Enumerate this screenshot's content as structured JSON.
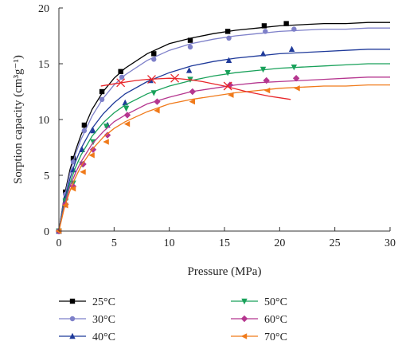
{
  "chart_data": {
    "type": "scatter",
    "xlabel": "Pressure (MPa)",
    "ylabel": "Sorption capacity (cm³g⁻¹)",
    "xlim": [
      0,
      30
    ],
    "ylim": [
      0,
      20
    ],
    "xticks": [
      0,
      5,
      10,
      15,
      20,
      25,
      30
    ],
    "yticks": [
      0,
      5,
      10,
      15,
      20
    ],
    "grid": false,
    "legend_position": "bottom",
    "series": [
      {
        "name": "25°C",
        "color": "#000000",
        "marker": "square",
        "x": [
          0,
          0.6,
          1.3,
          2.3,
          3.9,
          5.6,
          8.6,
          11.9,
          15.3,
          18.6,
          20.6
        ],
        "y": [
          0,
          3.5,
          6.5,
          9.5,
          12.5,
          14.3,
          15.9,
          17.1,
          17.9,
          18.4,
          18.6
        ],
        "fit_x": [
          0,
          0.5,
          1,
          1.5,
          2,
          3,
          4,
          5,
          6,
          8,
          10,
          12,
          14,
          16,
          18,
          20,
          22,
          24,
          26,
          28,
          30
        ],
        "fit_y": [
          0,
          3.2,
          5.5,
          7.2,
          8.6,
          10.9,
          12.5,
          13.7,
          14.6,
          15.9,
          16.8,
          17.3,
          17.7,
          18.0,
          18.2,
          18.4,
          18.5,
          18.6,
          18.6,
          18.7,
          18.7
        ]
      },
      {
        "name": "30°C",
        "color": "#7e80c9",
        "marker": "circle",
        "x": [
          0,
          0.6,
          1.3,
          2.3,
          3.9,
          5.7,
          8.6,
          11.9,
          15.4,
          18.7,
          21.3
        ],
        "y": [
          0,
          3.3,
          6.2,
          9.0,
          11.8,
          13.8,
          15.4,
          16.5,
          17.3,
          17.9,
          18.1
        ],
        "fit_x": [
          0,
          0.5,
          1,
          1.5,
          2,
          3,
          4,
          5,
          6,
          8,
          10,
          12,
          14,
          16,
          18,
          20,
          22,
          24,
          26,
          28,
          30
        ],
        "fit_y": [
          0,
          3.0,
          5.2,
          6.9,
          8.2,
          10.3,
          11.9,
          13.1,
          14.0,
          15.3,
          16.2,
          16.8,
          17.2,
          17.5,
          17.7,
          17.9,
          18.0,
          18.1,
          18.1,
          18.2,
          18.2
        ]
      },
      {
        "name": "40°C",
        "color": "#1f3a9a",
        "marker": "triangle-up",
        "x": [
          0,
          0.6,
          1.3,
          2.1,
          3.1,
          4.4,
          6.0,
          8.3,
          11.8,
          15.4,
          18.5,
          21.1
        ],
        "y": [
          0,
          3.0,
          5.5,
          7.3,
          9.0,
          9.5,
          11.5,
          13.5,
          14.4,
          15.3,
          15.9,
          16.3
        ],
        "fit_x": [
          0,
          0.5,
          1,
          1.5,
          2,
          3,
          4,
          5,
          6,
          8,
          10,
          12,
          14,
          16,
          18,
          20,
          22,
          24,
          26,
          28,
          30
        ],
        "fit_y": [
          0,
          2.7,
          4.7,
          6.2,
          7.4,
          9.2,
          10.5,
          11.5,
          12.3,
          13.4,
          14.2,
          14.8,
          15.2,
          15.5,
          15.7,
          15.9,
          16.0,
          16.1,
          16.2,
          16.3,
          16.3
        ]
      },
      {
        "name": "50°C",
        "color": "#19a15a",
        "marker": "triangle-down",
        "x": [
          0,
          0.6,
          1.3,
          2.1,
          3.1,
          4.3,
          6.1,
          8.6,
          11.9,
          15.3,
          18.5,
          21.3
        ],
        "y": [
          0,
          2.7,
          4.3,
          6.0,
          8.0,
          9.4,
          11.0,
          12.4,
          13.6,
          14.2,
          14.5,
          14.7
        ],
        "fit_x": [
          0,
          0.5,
          1,
          1.5,
          2,
          3,
          4,
          5,
          6,
          8,
          10,
          12,
          14,
          16,
          18,
          20,
          22,
          24,
          26,
          28,
          30
        ],
        "fit_y": [
          0,
          2.5,
          4.3,
          5.7,
          6.8,
          8.5,
          9.7,
          10.6,
          11.3,
          12.3,
          13.0,
          13.5,
          13.9,
          14.2,
          14.4,
          14.6,
          14.7,
          14.8,
          14.9,
          15.0,
          15.0
        ]
      },
      {
        "name": "60°C",
        "color": "#b5368f",
        "marker": "diamond",
        "x": [
          0,
          0.6,
          1.3,
          2.2,
          3.1,
          4.4,
          6.2,
          8.9,
          12.1,
          15.5,
          18.8,
          21.5
        ],
        "y": [
          0,
          2.4,
          4.0,
          6.0,
          7.3,
          8.6,
          10.4,
          11.6,
          12.5,
          13.1,
          13.5,
          13.7
        ],
        "fit_x": [
          0,
          0.5,
          1,
          1.5,
          2,
          3,
          4,
          5,
          6,
          8,
          10,
          12,
          14,
          16,
          18,
          20,
          22,
          24,
          26,
          28,
          30
        ],
        "fit_y": [
          0,
          2.3,
          4.0,
          5.2,
          6.2,
          7.8,
          8.9,
          9.8,
          10.4,
          11.4,
          12.0,
          12.5,
          12.8,
          13.1,
          13.3,
          13.4,
          13.5,
          13.6,
          13.7,
          13.8,
          13.8
        ]
      },
      {
        "name": "70°C",
        "color": "#f07a1a",
        "marker": "triangle-left",
        "x": [
          0,
          0.6,
          1.3,
          2.2,
          3.0,
          4.3,
          6.2,
          8.9,
          12.1,
          15.6,
          18.9,
          21.6
        ],
        "y": [
          0,
          2.3,
          3.8,
          5.3,
          6.8,
          8.0,
          9.6,
          10.8,
          11.6,
          12.2,
          12.6,
          12.8
        ],
        "fit_x": [
          0,
          0.5,
          1,
          1.5,
          2,
          3,
          4,
          5,
          6,
          8,
          10,
          12,
          14,
          16,
          18,
          20,
          22,
          24,
          26,
          28,
          30
        ],
        "fit_y": [
          0,
          2.1,
          3.6,
          4.8,
          5.8,
          7.3,
          8.4,
          9.2,
          9.8,
          10.7,
          11.4,
          11.8,
          12.1,
          12.4,
          12.6,
          12.8,
          12.9,
          13.0,
          13.0,
          13.1,
          13.1
        ]
      },
      {
        "name": "",
        "color": "#e8262a",
        "marker": "x",
        "x": [
          5.6,
          8.4,
          10.5,
          15.3
        ],
        "y": [
          13.3,
          13.6,
          13.7,
          13.0
        ],
        "fit_x": [
          3.8,
          5,
          6,
          7,
          8,
          9,
          10,
          11,
          12,
          13,
          14,
          15,
          16,
          17,
          18,
          19,
          20,
          21
        ],
        "fit_y": [
          13.0,
          13.2,
          13.35,
          13.5,
          13.6,
          13.65,
          13.7,
          13.65,
          13.55,
          13.4,
          13.2,
          13.0,
          12.75,
          12.5,
          12.3,
          12.1,
          11.95,
          11.8
        ]
      }
    ]
  }
}
